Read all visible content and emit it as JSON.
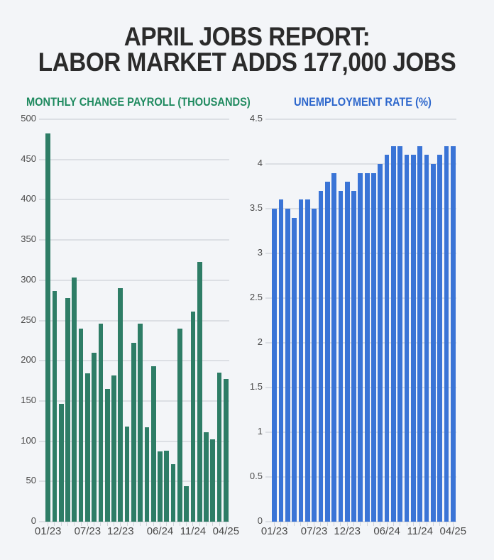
{
  "header": {
    "title_line1": "APRIL JOBS REPORT:",
    "title_line2": "LABOR MARKET ADDS 177,000 JOBS"
  },
  "colors": {
    "background": "#f3f5f8",
    "title": "#2b2b2b",
    "payroll_bar": "#2e7d66",
    "payroll_subtitle": "#1f8a5f",
    "unemployment_bar": "#3a74d6",
    "unemployment_subtitle": "#2c66cc",
    "gridline": "#dcdfe4",
    "axis_text": "#4a4a4a"
  },
  "chart_data": [
    {
      "type": "bar",
      "title": "MONTHLY CHANGE PAYROLL (THOUSANDS)",
      "xlabel": "",
      "ylabel": "",
      "ylim": [
        0,
        500
      ],
      "yticks": [
        0,
        50,
        100,
        150,
        200,
        250,
        300,
        350,
        400,
        450,
        500
      ],
      "grid": true,
      "legend": "none",
      "categories": [
        "01/23",
        "02/23",
        "03/23",
        "04/23",
        "05/23",
        "06/23",
        "07/23",
        "08/23",
        "09/23",
        "10/23",
        "11/23",
        "12/23",
        "01/24",
        "02/24",
        "03/24",
        "04/24",
        "05/24",
        "06/24",
        "07/24",
        "08/24",
        "09/24",
        "10/24",
        "11/24",
        "12/24",
        "01/25",
        "02/25",
        "03/25",
        "04/25"
      ],
      "xtick_labels": [
        {
          "index": 0,
          "label": "01/23"
        },
        {
          "index": 6,
          "label": "07/23"
        },
        {
          "index": 11,
          "label": "12/23"
        },
        {
          "index": 17,
          "label": "06/24"
        },
        {
          "index": 22,
          "label": "11/24"
        },
        {
          "index": 27,
          "label": "04/25"
        }
      ],
      "values": [
        482,
        287,
        146,
        278,
        303,
        240,
        184,
        210,
        246,
        165,
        182,
        290,
        118,
        222,
        246,
        117,
        193,
        87,
        88,
        71,
        240,
        44,
        261,
        323,
        111,
        102,
        185,
        177
      ]
    },
    {
      "type": "bar",
      "title": "UNEMPLOYMENT RATE (%)",
      "xlabel": "",
      "ylabel": "",
      "ylim": [
        0,
        4.5
      ],
      "yticks": [
        0,
        0.5,
        1,
        1.5,
        2,
        2.5,
        3,
        3.5,
        4,
        4.5
      ],
      "grid": true,
      "legend": "none",
      "categories": [
        "01/23",
        "02/23",
        "03/23",
        "04/23",
        "05/23",
        "06/23",
        "07/23",
        "08/23",
        "09/23",
        "10/23",
        "11/23",
        "12/23",
        "01/24",
        "02/24",
        "03/24",
        "04/24",
        "05/24",
        "06/24",
        "07/24",
        "08/24",
        "09/24",
        "10/24",
        "11/24",
        "12/24",
        "01/25",
        "02/25",
        "03/25",
        "04/25"
      ],
      "xtick_labels": [
        {
          "index": 0,
          "label": "01/23"
        },
        {
          "index": 6,
          "label": "07/23"
        },
        {
          "index": 11,
          "label": "12/23"
        },
        {
          "index": 17,
          "label": "06/24"
        },
        {
          "index": 22,
          "label": "11/24"
        },
        {
          "index": 27,
          "label": "04/25"
        }
      ],
      "values": [
        3.5,
        3.6,
        3.5,
        3.4,
        3.6,
        3.6,
        3.5,
        3.7,
        3.8,
        3.9,
        3.7,
        3.8,
        3.7,
        3.9,
        3.9,
        3.9,
        4.0,
        4.1,
        4.2,
        4.2,
        4.1,
        4.1,
        4.2,
        4.1,
        4.0,
        4.1,
        4.2,
        4.2
      ]
    }
  ]
}
